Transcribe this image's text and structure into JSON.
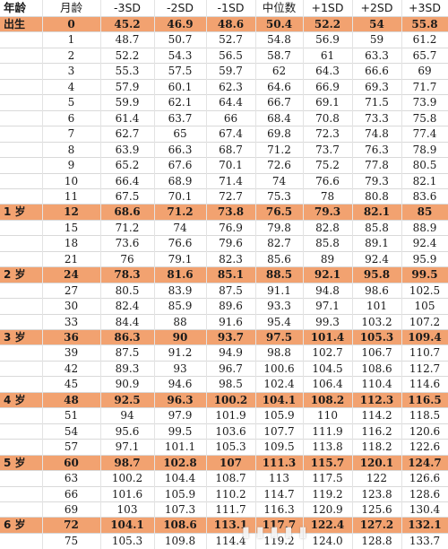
{
  "headers": [
    "年龄",
    "月龄",
    "-3SD",
    "-2SD",
    "-1SD",
    "中位数",
    "+1SD",
    "+2SD",
    "+3SD"
  ],
  "rows": [
    {
      "age": "出生",
      "month": "0",
      "v": [
        "45.2",
        "46.9",
        "48.6",
        "50.4",
        "52.2",
        "54",
        "55.8"
      ],
      "highlight": true
    },
    {
      "age": "",
      "month": "1",
      "v": [
        "48.7",
        "50.7",
        "52.7",
        "54.8",
        "56.9",
        "59",
        "61.2"
      ],
      "highlight": false
    },
    {
      "age": "",
      "month": "2",
      "v": [
        "52.2",
        "54.3",
        "56.5",
        "58.7",
        "61",
        "63.3",
        "65.7"
      ],
      "highlight": false
    },
    {
      "age": "",
      "month": "3",
      "v": [
        "55.3",
        "57.5",
        "59.7",
        "62",
        "64.3",
        "66.6",
        "69"
      ],
      "highlight": false
    },
    {
      "age": "",
      "month": "4",
      "v": [
        "57.9",
        "60.1",
        "62.3",
        "64.6",
        "66.9",
        "69.3",
        "71.7"
      ],
      "highlight": false
    },
    {
      "age": "",
      "month": "5",
      "v": [
        "59.9",
        "62.1",
        "64.4",
        "66.7",
        "69.1",
        "71.5",
        "73.9"
      ],
      "highlight": false
    },
    {
      "age": "",
      "month": "6",
      "v": [
        "61.4",
        "63.7",
        "66",
        "68.4",
        "70.8",
        "73.3",
        "75.8"
      ],
      "highlight": false
    },
    {
      "age": "",
      "month": "7",
      "v": [
        "62.7",
        "65",
        "67.4",
        "69.8",
        "72.3",
        "74.8",
        "77.4"
      ],
      "highlight": false
    },
    {
      "age": "",
      "month": "8",
      "v": [
        "63.9",
        "66.3",
        "68.7",
        "71.2",
        "73.7",
        "76.3",
        "78.9"
      ],
      "highlight": false
    },
    {
      "age": "",
      "month": "9",
      "v": [
        "65.2",
        "67.6",
        "70.1",
        "72.6",
        "75.2",
        "77.8",
        "80.5"
      ],
      "highlight": false
    },
    {
      "age": "",
      "month": "10",
      "v": [
        "66.4",
        "68.9",
        "71.4",
        "74",
        "76.6",
        "79.3",
        "82.1"
      ],
      "highlight": false
    },
    {
      "age": "",
      "month": "11",
      "v": [
        "67.5",
        "70.1",
        "72.7",
        "75.3",
        "78",
        "80.8",
        "83.6"
      ],
      "highlight": false
    },
    {
      "age": "1 岁",
      "month": "12",
      "v": [
        "68.6",
        "71.2",
        "73.8",
        "76.5",
        "79.3",
        "82.1",
        "85"
      ],
      "highlight": true
    },
    {
      "age": "",
      "month": "15",
      "v": [
        "71.2",
        "74",
        "76.9",
        "79.8",
        "82.8",
        "85.8",
        "88.9"
      ],
      "highlight": false
    },
    {
      "age": "",
      "month": "18",
      "v": [
        "73.6",
        "76.6",
        "79.6",
        "82.7",
        "85.8",
        "89.1",
        "92.4"
      ],
      "highlight": false
    },
    {
      "age": "",
      "month": "21",
      "v": [
        "76",
        "79.1",
        "82.3",
        "85.6",
        "89",
        "92.4",
        "95.9"
      ],
      "highlight": false
    },
    {
      "age": "2 岁",
      "month": "24",
      "v": [
        "78.3",
        "81.6",
        "85.1",
        "88.5",
        "92.1",
        "95.8",
        "99.5"
      ],
      "highlight": true
    },
    {
      "age": "",
      "month": "27",
      "v": [
        "80.5",
        "83.9",
        "87.5",
        "91.1",
        "94.8",
        "98.6",
        "102.5"
      ],
      "highlight": false
    },
    {
      "age": "",
      "month": "30",
      "v": [
        "82.4",
        "85.9",
        "89.6",
        "93.3",
        "97.1",
        "101",
        "105"
      ],
      "highlight": false
    },
    {
      "age": "",
      "month": "33",
      "v": [
        "84.4",
        "88",
        "91.6",
        "95.4",
        "99.3",
        "103.2",
        "107.2"
      ],
      "highlight": false
    },
    {
      "age": "3 岁",
      "month": "36",
      "v": [
        "86.3",
        "90",
        "93.7",
        "97.5",
        "101.4",
        "105.3",
        "109.4"
      ],
      "highlight": true
    },
    {
      "age": "",
      "month": "39",
      "v": [
        "87.5",
        "91.2",
        "94.9",
        "98.8",
        "102.7",
        "106.7",
        "110.7"
      ],
      "highlight": false
    },
    {
      "age": "",
      "month": "42",
      "v": [
        "89.3",
        "93",
        "96.7",
        "100.6",
        "104.5",
        "108.6",
        "112.7"
      ],
      "highlight": false
    },
    {
      "age": "",
      "month": "45",
      "v": [
        "90.9",
        "94.6",
        "98.5",
        "102.4",
        "106.4",
        "110.4",
        "114.6"
      ],
      "highlight": false
    },
    {
      "age": "4 岁",
      "month": "48",
      "v": [
        "92.5",
        "96.3",
        "100.2",
        "104.1",
        "108.2",
        "112.3",
        "116.5"
      ],
      "highlight": true
    },
    {
      "age": "",
      "month": "51",
      "v": [
        "94",
        "97.9",
        "101.9",
        "105.9",
        "110",
        "114.2",
        "118.5"
      ],
      "highlight": false
    },
    {
      "age": "",
      "month": "54",
      "v": [
        "95.6",
        "99.5",
        "103.6",
        "107.7",
        "111.9",
        "116.2",
        "120.6"
      ],
      "highlight": false
    },
    {
      "age": "",
      "month": "57",
      "v": [
        "97.1",
        "101.1",
        "105.3",
        "109.5",
        "113.8",
        "118.2",
        "122.6"
      ],
      "highlight": false
    },
    {
      "age": "5 岁",
      "month": "60",
      "v": [
        "98.7",
        "102.8",
        "107",
        "111.3",
        "115.7",
        "120.1",
        "124.7"
      ],
      "highlight": true
    },
    {
      "age": "",
      "month": "63",
      "v": [
        "100.2",
        "104.4",
        "108.7",
        "113",
        "117.5",
        "122",
        "126.6"
      ],
      "highlight": false
    },
    {
      "age": "",
      "month": "66",
      "v": [
        "101.6",
        "105.9",
        "110.2",
        "114.7",
        "119.2",
        "123.8",
        "128.6"
      ],
      "highlight": false
    },
    {
      "age": "",
      "month": "69",
      "v": [
        "103",
        "107.3",
        "111.7",
        "116.3",
        "120.9",
        "125.6",
        "130.4"
      ],
      "highlight": false
    },
    {
      "age": "6 岁",
      "month": "72",
      "v": [
        "104.1",
        "108.6",
        "113.1",
        "117.7",
        "122.4",
        "127.2",
        "132.1"
      ],
      "highlight": true
    },
    {
      "age": "",
      "month": "75",
      "v": [
        "105.3",
        "109.8",
        "114.4",
        "119.2",
        "124.0",
        "128.8",
        "133.7"
      ],
      "highlight": false
    }
  ]
}
